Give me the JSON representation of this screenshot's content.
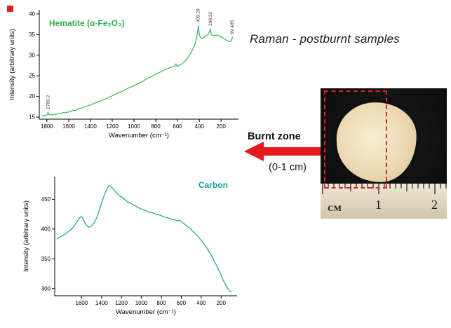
{
  "page_title": "Raman - postburnt samples",
  "labels": {
    "burnt_zone": "Burnt zone",
    "depth": "(0-1 cm)"
  },
  "colors": {
    "hematite_green": "#2eb34d",
    "carbon_teal": "#149b9b",
    "arrow_red": "#e8191c",
    "dash_red": "#e62020",
    "marker_red": "#e21b1c"
  },
  "photo": {
    "ruler_unit": "CM",
    "ruler_numbers": [
      "1",
      "2"
    ]
  },
  "chart_data": [
    {
      "id": "hematite",
      "type": "line",
      "title": "Hematite (α-Fe₂O₃)",
      "xlabel": "Wavenumber (cm⁻¹)",
      "ylabel": "Intensity (arbitrary units)",
      "xlim": [
        1870,
        40
      ],
      "ylim": [
        14.5,
        41
      ],
      "x_ticks": [
        1800,
        1600,
        1400,
        1200,
        1000,
        800,
        600,
        400,
        200
      ],
      "y_ticks": [
        15,
        20,
        25,
        30,
        35,
        40
      ],
      "legend": "none",
      "grid": false,
      "color": "#2eb34d",
      "annotations": [
        {
          "label": "1789.2",
          "x": 1789,
          "y": 16.4
        },
        {
          "label": "409.28",
          "x": 409,
          "y": 37.4
        },
        {
          "label": "298.33",
          "x": 298,
          "y": 36.6
        },
        {
          "label": "99.485",
          "x": 99,
          "y": 34.6
        }
      ],
      "points": [
        [
          1845,
          15.2
        ],
        [
          1830,
          15.4
        ],
        [
          1815,
          15.3
        ],
        [
          1800,
          15.5
        ],
        [
          1789,
          16.2
        ],
        [
          1780,
          15.5
        ],
        [
          1765,
          15.6
        ],
        [
          1750,
          15.5
        ],
        [
          1735,
          15.7
        ],
        [
          1720,
          15.6
        ],
        [
          1705,
          15.8
        ],
        [
          1690,
          15.9
        ],
        [
          1675,
          15.8
        ],
        [
          1660,
          16.0
        ],
        [
          1645,
          16.1
        ],
        [
          1630,
          16.0
        ],
        [
          1615,
          16.2
        ],
        [
          1600,
          16.2
        ],
        [
          1585,
          16.4
        ],
        [
          1570,
          16.5
        ],
        [
          1555,
          16.6
        ],
        [
          1540,
          16.6
        ],
        [
          1525,
          16.8
        ],
        [
          1510,
          17.0
        ],
        [
          1495,
          17.1
        ],
        [
          1480,
          17.2
        ],
        [
          1465,
          17.4
        ],
        [
          1450,
          17.5
        ],
        [
          1435,
          17.6
        ],
        [
          1420,
          17.8
        ],
        [
          1405,
          17.9
        ],
        [
          1390,
          18.1
        ],
        [
          1375,
          18.2
        ],
        [
          1360,
          18.4
        ],
        [
          1345,
          18.5
        ],
        [
          1330,
          18.7
        ],
        [
          1315,
          18.8
        ],
        [
          1300,
          19.0
        ],
        [
          1285,
          19.2
        ],
        [
          1270,
          19.3
        ],
        [
          1255,
          19.5
        ],
        [
          1240,
          19.7
        ],
        [
          1225,
          19.9
        ],
        [
          1210,
          20.0
        ],
        [
          1195,
          20.2
        ],
        [
          1180,
          20.4
        ],
        [
          1165,
          20.6
        ],
        [
          1150,
          20.8
        ],
        [
          1135,
          21.0
        ],
        [
          1120,
          21.1
        ],
        [
          1105,
          21.3
        ],
        [
          1090,
          21.5
        ],
        [
          1075,
          21.7
        ],
        [
          1060,
          21.9
        ],
        [
          1045,
          22.1
        ],
        [
          1030,
          22.3
        ],
        [
          1015,
          22.4
        ],
        [
          1000,
          22.6
        ],
        [
          985,
          22.8
        ],
        [
          970,
          23.0
        ],
        [
          955,
          23.2
        ],
        [
          940,
          23.4
        ],
        [
          925,
          23.6
        ],
        [
          910,
          23.8
        ],
        [
          895,
          24.1
        ],
        [
          880,
          24.3
        ],
        [
          865,
          24.5
        ],
        [
          850,
          24.7
        ],
        [
          835,
          24.9
        ],
        [
          820,
          25.1
        ],
        [
          805,
          25.3
        ],
        [
          790,
          25.5
        ],
        [
          775,
          25.7
        ],
        [
          760,
          25.9
        ],
        [
          745,
          26.1
        ],
        [
          730,
          26.3
        ],
        [
          715,
          26.5
        ],
        [
          700,
          26.6
        ],
        [
          685,
          26.8
        ],
        [
          670,
          27.0
        ],
        [
          655,
          27.1
        ],
        [
          640,
          27.2
        ],
        [
          625,
          27.3
        ],
        [
          615,
          27.9
        ],
        [
          607,
          27.3
        ],
        [
          595,
          27.4
        ],
        [
          580,
          27.6
        ],
        [
          565,
          27.8
        ],
        [
          550,
          28.1
        ],
        [
          535,
          28.5
        ],
        [
          520,
          28.9
        ],
        [
          505,
          29.4
        ],
        [
          490,
          30.0
        ],
        [
          475,
          30.7
        ],
        [
          460,
          31.4
        ],
        [
          445,
          32.3
        ],
        [
          432,
          33.4
        ],
        [
          422,
          34.6
        ],
        [
          414,
          36.0
        ],
        [
          409,
          37.2
        ],
        [
          404,
          36.0
        ],
        [
          398,
          34.9
        ],
        [
          390,
          34.3
        ],
        [
          382,
          34.1
        ],
        [
          374,
          34.0
        ],
        [
          366,
          34.2
        ],
        [
          356,
          34.3
        ],
        [
          346,
          34.5
        ],
        [
          336,
          34.7
        ],
        [
          326,
          34.9
        ],
        [
          316,
          35.2
        ],
        [
          308,
          35.6
        ],
        [
          302,
          36.0
        ],
        [
          298,
          36.4
        ],
        [
          293,
          35.6
        ],
        [
          287,
          35.0
        ],
        [
          279,
          34.8
        ],
        [
          269,
          34.7
        ],
        [
          259,
          34.8
        ],
        [
          249,
          34.9
        ],
        [
          239,
          34.8
        ],
        [
          229,
          34.7
        ],
        [
          219,
          34.7
        ],
        [
          209,
          34.6
        ],
        [
          199,
          34.4
        ],
        [
          189,
          34.3
        ],
        [
          179,
          34.1
        ],
        [
          169,
          34.0
        ],
        [
          159,
          33.8
        ],
        [
          149,
          33.6
        ],
        [
          139,
          33.5
        ],
        [
          129,
          33.3
        ],
        [
          119,
          33.3
        ],
        [
          109,
          33.4
        ],
        [
          101,
          33.8
        ],
        [
          95,
          34.4
        ]
      ]
    },
    {
      "id": "carbon",
      "type": "line",
      "title": "Carbon",
      "xlabel": "Wavenumber (cm⁻¹)",
      "ylabel": "Intensity (arbitrary units)",
      "xlim": [
        1870,
        40
      ],
      "ylim": [
        288,
        488
      ],
      "x_ticks": [
        1600,
        1400,
        1200,
        1000,
        800,
        600,
        400,
        200
      ],
      "y_ticks": [
        300,
        350,
        400,
        450
      ],
      "legend": "none",
      "grid": false,
      "color": "#149b9b",
      "annotations": [],
      "points": [
        [
          1850,
          383
        ],
        [
          1835,
          385
        ],
        [
          1820,
          386
        ],
        [
          1805,
          388
        ],
        [
          1790,
          389
        ],
        [
          1775,
          391
        ],
        [
          1760,
          392
        ],
        [
          1745,
          394
        ],
        [
          1730,
          396
        ],
        [
          1715,
          398
        ],
        [
          1700,
          400
        ],
        [
          1685,
          403
        ],
        [
          1670,
          406
        ],
        [
          1655,
          410
        ],
        [
          1640,
          414
        ],
        [
          1625,
          418
        ],
        [
          1612,
          420
        ],
        [
          1600,
          421
        ],
        [
          1588,
          418
        ],
        [
          1575,
          413
        ],
        [
          1562,
          409
        ],
        [
          1550,
          406
        ],
        [
          1538,
          404
        ],
        [
          1526,
          403
        ],
        [
          1514,
          404
        ],
        [
          1502,
          405
        ],
        [
          1490,
          407
        ],
        [
          1478,
          410
        ],
        [
          1466,
          413
        ],
        [
          1454,
          417
        ],
        [
          1442,
          422
        ],
        [
          1430,
          428
        ],
        [
          1418,
          434
        ],
        [
          1406,
          440
        ],
        [
          1394,
          446
        ],
        [
          1382,
          452
        ],
        [
          1370,
          458
        ],
        [
          1358,
          463
        ],
        [
          1346,
          467
        ],
        [
          1334,
          471
        ],
        [
          1322,
          473
        ],
        [
          1310,
          472
        ],
        [
          1298,
          470
        ],
        [
          1286,
          468
        ],
        [
          1274,
          465
        ],
        [
          1262,
          463
        ],
        [
          1250,
          461
        ],
        [
          1238,
          459
        ],
        [
          1226,
          457
        ],
        [
          1214,
          455
        ],
        [
          1202,
          454
        ],
        [
          1185,
          452
        ],
        [
          1170,
          450
        ],
        [
          1155,
          448
        ],
        [
          1140,
          446
        ],
        [
          1125,
          445
        ],
        [
          1110,
          443
        ],
        [
          1095,
          442
        ],
        [
          1080,
          440
        ],
        [
          1065,
          439
        ],
        [
          1050,
          438
        ],
        [
          1035,
          436
        ],
        [
          1020,
          435
        ],
        [
          1005,
          434
        ],
        [
          990,
          433
        ],
        [
          975,
          432
        ],
        [
          960,
          431
        ],
        [
          945,
          430
        ],
        [
          930,
          429
        ],
        [
          915,
          428
        ],
        [
          900,
          428
        ],
        [
          885,
          427
        ],
        [
          870,
          426
        ],
        [
          855,
          425
        ],
        [
          840,
          424
        ],
        [
          825,
          424
        ],
        [
          810,
          423
        ],
        [
          795,
          422
        ],
        [
          780,
          421
        ],
        [
          765,
          420
        ],
        [
          750,
          419
        ],
        [
          735,
          419
        ],
        [
          720,
          418
        ],
        [
          705,
          417
        ],
        [
          690,
          416
        ],
        [
          675,
          416
        ],
        [
          660,
          415
        ],
        [
          645,
          414
        ],
        [
          630,
          414
        ],
        [
          618,
          415
        ],
        [
          608,
          413
        ],
        [
          595,
          412
        ],
        [
          580,
          410
        ],
        [
          565,
          408
        ],
        [
          550,
          406
        ],
        [
          535,
          404
        ],
        [
          520,
          402
        ],
        [
          505,
          400
        ],
        [
          490,
          397
        ],
        [
          475,
          395
        ],
        [
          460,
          392
        ],
        [
          445,
          390
        ],
        [
          430,
          387
        ],
        [
          415,
          384
        ],
        [
          400,
          381
        ],
        [
          385,
          378
        ],
        [
          370,
          374
        ],
        [
          355,
          371
        ],
        [
          340,
          367
        ],
        [
          325,
          363
        ],
        [
          310,
          359
        ],
        [
          295,
          355
        ],
        [
          280,
          350
        ],
        [
          265,
          345
        ],
        [
          250,
          340
        ],
        [
          235,
          335
        ],
        [
          220,
          330
        ],
        [
          205,
          325
        ],
        [
          190,
          319
        ],
        [
          175,
          313
        ],
        [
          160,
          308
        ],
        [
          145,
          303
        ],
        [
          130,
          299
        ],
        [
          112,
          296
        ],
        [
          95,
          294
        ]
      ]
    }
  ]
}
